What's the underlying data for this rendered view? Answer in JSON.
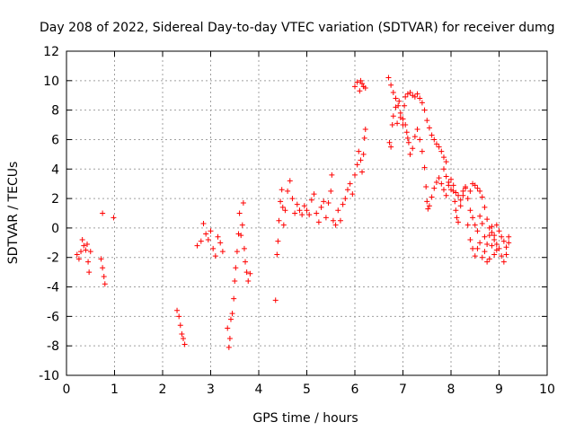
{
  "chart_data": {
    "type": "scatter",
    "title": "Day 208 of 2022, Sidereal Day-to-day VTEC variation (SDTVAR) for receiver dumg",
    "xlabel": "GPS time / hours",
    "ylabel": "SDTVAR / TECUs",
    "xlim": [
      0,
      10
    ],
    "ylim": [
      -10,
      12
    ],
    "xticks": [
      0,
      1,
      2,
      3,
      4,
      5,
      6,
      7,
      8,
      9,
      10
    ],
    "yticks": [
      -10,
      -8,
      -6,
      -4,
      -2,
      0,
      2,
      4,
      6,
      8,
      10,
      12
    ],
    "grid": true,
    "marker": "+",
    "series": [
      {
        "name": "SDTVAR",
        "color": "#ff0000",
        "points": [
          [
            0.22,
            -1.8
          ],
          [
            0.26,
            -2.1
          ],
          [
            0.3,
            -1.6
          ],
          [
            0.33,
            -0.8
          ],
          [
            0.36,
            -1.2
          ],
          [
            0.4,
            -1.5
          ],
          [
            0.43,
            -1.1
          ],
          [
            0.45,
            -2.3
          ],
          [
            0.47,
            -3.0
          ],
          [
            0.5,
            -1.6
          ],
          [
            0.72,
            -2.1
          ],
          [
            0.75,
            -2.7
          ],
          [
            0.78,
            -3.3
          ],
          [
            0.8,
            -3.8
          ],
          [
            0.75,
            1.0
          ],
          [
            0.98,
            0.7
          ],
          [
            2.3,
            -5.6
          ],
          [
            2.34,
            -6.0
          ],
          [
            2.37,
            -6.6
          ],
          [
            2.4,
            -7.2
          ],
          [
            2.43,
            -7.5
          ],
          [
            2.46,
            -7.9
          ],
          [
            2.72,
            -1.2
          ],
          [
            2.8,
            -0.9
          ],
          [
            2.85,
            0.3
          ],
          [
            2.9,
            -0.4
          ],
          [
            2.95,
            -0.8
          ],
          [
            3.0,
            -0.2
          ],
          [
            3.05,
            -1.4
          ],
          [
            3.1,
            -1.9
          ],
          [
            3.15,
            -0.6
          ],
          [
            3.2,
            -1.0
          ],
          [
            3.25,
            -1.6
          ],
          [
            3.35,
            -6.8
          ],
          [
            3.38,
            -8.1
          ],
          [
            3.4,
            -7.5
          ],
          [
            3.42,
            -6.2
          ],
          [
            3.45,
            -5.8
          ],
          [
            3.48,
            -4.8
          ],
          [
            3.5,
            -3.6
          ],
          [
            3.52,
            -2.7
          ],
          [
            3.55,
            -1.6
          ],
          [
            3.58,
            -0.4
          ],
          [
            3.6,
            1.0
          ],
          [
            3.63,
            -0.5
          ],
          [
            3.66,
            0.2
          ],
          [
            3.68,
            1.7
          ],
          [
            3.7,
            -1.4
          ],
          [
            3.72,
            -2.3
          ],
          [
            3.75,
            -3.0
          ],
          [
            3.78,
            -3.6
          ],
          [
            3.82,
            -3.1
          ],
          [
            4.35,
            -4.9
          ],
          [
            4.38,
            -1.8
          ],
          [
            4.4,
            -0.9
          ],
          [
            4.42,
            0.5
          ],
          [
            4.45,
            1.8
          ],
          [
            4.48,
            2.6
          ],
          [
            4.5,
            1.4
          ],
          [
            4.52,
            0.2
          ],
          [
            4.55,
            1.2
          ],
          [
            4.6,
            2.5
          ],
          [
            4.65,
            3.2
          ],
          [
            4.7,
            2.0
          ],
          [
            4.75,
            1.0
          ],
          [
            4.8,
            1.6
          ],
          [
            4.85,
            1.2
          ],
          [
            4.9,
            0.9
          ],
          [
            4.95,
            1.5
          ],
          [
            5.0,
            1.2
          ],
          [
            5.05,
            0.9
          ],
          [
            5.1,
            1.9
          ],
          [
            5.15,
            2.3
          ],
          [
            5.2,
            1.0
          ],
          [
            5.25,
            0.4
          ],
          [
            5.3,
            1.4
          ],
          [
            5.35,
            1.8
          ],
          [
            5.4,
            0.7
          ],
          [
            5.45,
            1.7
          ],
          [
            5.5,
            2.5
          ],
          [
            5.52,
            3.6
          ],
          [
            5.55,
            0.5
          ],
          [
            5.6,
            0.2
          ],
          [
            5.65,
            1.2
          ],
          [
            5.7,
            0.5
          ],
          [
            5.75,
            1.6
          ],
          [
            5.8,
            2.0
          ],
          [
            5.85,
            2.6
          ],
          [
            5.9,
            3.0
          ],
          [
            5.95,
            2.3
          ],
          [
            6.0,
            3.6
          ],
          [
            6.05,
            4.3
          ],
          [
            6.08,
            5.2
          ],
          [
            6.12,
            4.6
          ],
          [
            6.15,
            3.8
          ],
          [
            6.18,
            5.0
          ],
          [
            6.2,
            6.1
          ],
          [
            6.22,
            6.7
          ],
          [
            6.0,
            9.6
          ],
          [
            6.05,
            9.9
          ],
          [
            6.1,
            9.3
          ],
          [
            6.12,
            10.0
          ],
          [
            6.15,
            9.8
          ],
          [
            6.18,
            9.6
          ],
          [
            6.22,
            9.5
          ],
          [
            6.7,
            10.2
          ],
          [
            6.75,
            9.7
          ],
          [
            6.8,
            9.2
          ],
          [
            6.85,
            8.8
          ],
          [
            6.9,
            8.3
          ],
          [
            6.95,
            7.8
          ],
          [
            7.0,
            7.4
          ],
          [
            7.05,
            7.0
          ],
          [
            7.08,
            6.5
          ],
          [
            7.1,
            6.1
          ],
          [
            7.12,
            5.8
          ],
          [
            7.15,
            5.0
          ],
          [
            7.2,
            5.4
          ],
          [
            7.25,
            6.2
          ],
          [
            6.72,
            5.8
          ],
          [
            6.75,
            5.5
          ],
          [
            6.78,
            7.0
          ],
          [
            6.8,
            7.6
          ],
          [
            6.85,
            8.2
          ],
          [
            6.88,
            7.1
          ],
          [
            6.92,
            8.6
          ],
          [
            6.95,
            7.5
          ],
          [
            7.0,
            7.0
          ],
          [
            7.03,
            8.3
          ],
          [
            7.05,
            8.9
          ],
          [
            7.1,
            9.1
          ],
          [
            7.15,
            9.2
          ],
          [
            7.2,
            9.0
          ],
          [
            7.25,
            8.9
          ],
          [
            7.3,
            9.1
          ],
          [
            7.35,
            8.8
          ],
          [
            7.4,
            8.5
          ],
          [
            7.45,
            8.0
          ],
          [
            7.5,
            7.3
          ],
          [
            7.55,
            6.8
          ],
          [
            7.6,
            6.3
          ],
          [
            7.65,
            6.0
          ],
          [
            7.7,
            5.7
          ],
          [
            7.75,
            5.5
          ],
          [
            7.8,
            5.2
          ],
          [
            7.85,
            4.8
          ],
          [
            7.9,
            4.5
          ],
          [
            7.3,
            6.7
          ],
          [
            7.35,
            6.0
          ],
          [
            7.4,
            5.2
          ],
          [
            7.45,
            4.1
          ],
          [
            7.48,
            2.8
          ],
          [
            7.5,
            1.8
          ],
          [
            7.52,
            1.3
          ],
          [
            7.55,
            1.5
          ],
          [
            7.6,
            2.1
          ],
          [
            7.65,
            2.7
          ],
          [
            7.7,
            3.1
          ],
          [
            7.75,
            3.4
          ],
          [
            7.8,
            3.0
          ],
          [
            7.85,
            2.6
          ],
          [
            7.9,
            2.2
          ],
          [
            7.95,
            2.9
          ],
          [
            8.0,
            3.3
          ],
          [
            8.05,
            2.5
          ],
          [
            8.08,
            1.8
          ],
          [
            8.1,
            1.2
          ],
          [
            8.12,
            0.7
          ],
          [
            8.15,
            0.4
          ],
          [
            8.2,
            1.5
          ],
          [
            8.25,
            2.2
          ],
          [
            8.3,
            2.7
          ],
          [
            8.35,
            0.2
          ],
          [
            8.4,
            -0.8
          ],
          [
            8.45,
            -1.4
          ],
          [
            8.5,
            -1.9
          ],
          [
            8.55,
            -1.4
          ],
          [
            8.6,
            -1.0
          ],
          [
            8.65,
            -2.0
          ],
          [
            8.7,
            -1.6
          ],
          [
            8.75,
            -2.3
          ],
          [
            8.8,
            -2.1
          ],
          [
            8.85,
            -1.2
          ],
          [
            8.9,
            -1.8
          ],
          [
            8.95,
            -1.5
          ],
          [
            7.85,
            4.0
          ],
          [
            7.9,
            3.5
          ],
          [
            7.95,
            3.1
          ],
          [
            8.0,
            2.6
          ],
          [
            8.05,
            2.9
          ],
          [
            8.1,
            2.4
          ],
          [
            8.15,
            2.2
          ],
          [
            8.2,
            1.9
          ],
          [
            8.25,
            2.5
          ],
          [
            8.3,
            2.8
          ],
          [
            8.35,
            2.0
          ],
          [
            8.4,
            2.5
          ],
          [
            8.45,
            3.0
          ],
          [
            8.5,
            2.9
          ],
          [
            8.55,
            2.7
          ],
          [
            8.6,
            2.5
          ],
          [
            8.65,
            2.1
          ],
          [
            8.7,
            1.4
          ],
          [
            8.75,
            0.6
          ],
          [
            8.8,
            0.0
          ],
          [
            8.85,
            -0.3
          ],
          [
            8.9,
            -0.5
          ],
          [
            8.95,
            0.2
          ],
          [
            9.0,
            -0.2
          ],
          [
            9.05,
            -0.6
          ],
          [
            9.1,
            -0.9
          ],
          [
            9.15,
            -1.3
          ],
          [
            9.2,
            -0.6
          ],
          [
            8.4,
            1.2
          ],
          [
            8.45,
            0.7
          ],
          [
            8.5,
            0.2
          ],
          [
            8.55,
            -0.2
          ],
          [
            8.6,
            0.8
          ],
          [
            8.65,
            0.3
          ],
          [
            8.7,
            -0.6
          ],
          [
            8.75,
            -1.1
          ],
          [
            8.8,
            -0.5
          ],
          [
            8.85,
            0.1
          ],
          [
            8.9,
            -0.8
          ],
          [
            8.95,
            -1.1
          ],
          [
            9.0,
            -1.4
          ],
          [
            9.05,
            -1.9
          ],
          [
            9.1,
            -2.3
          ],
          [
            9.15,
            -1.8
          ],
          [
            9.2,
            -1.0
          ]
        ]
      }
    ]
  }
}
